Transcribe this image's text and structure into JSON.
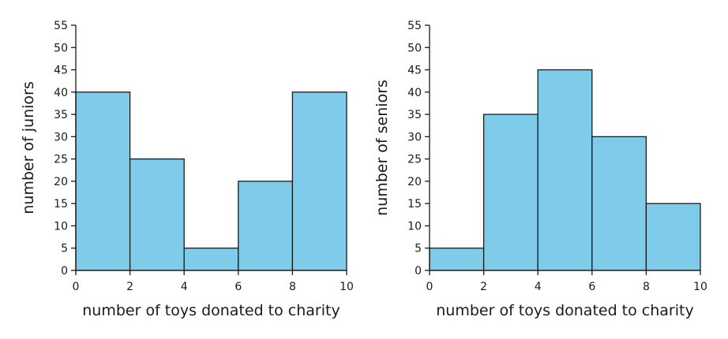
{
  "chart_data": [
    {
      "type": "bar",
      "title": "",
      "xlabel": "number of toys donated to charity",
      "ylabel": "number of juniors",
      "bins": [
        [
          0,
          2
        ],
        [
          2,
          4
        ],
        [
          4,
          6
        ],
        [
          6,
          8
        ],
        [
          8,
          10
        ]
      ],
      "values": [
        40,
        25,
        5,
        20,
        40
      ],
      "xlim": [
        0,
        10
      ],
      "ylim": [
        0,
        55
      ],
      "xticks": [
        "0",
        "2",
        "4",
        "6",
        "8",
        "10"
      ],
      "yticks": [
        "0",
        "5",
        "10",
        "15",
        "20",
        "25",
        "30",
        "35",
        "40",
        "45",
        "50",
        "55"
      ],
      "bar_color": "#7ecbea",
      "grid": false
    },
    {
      "type": "bar",
      "title": "",
      "xlabel": "number of toys donated to charity",
      "ylabel": "number of seniors",
      "bins": [
        [
          0,
          2
        ],
        [
          2,
          4
        ],
        [
          4,
          6
        ],
        [
          6,
          8
        ],
        [
          8,
          10
        ]
      ],
      "values": [
        5,
        35,
        45,
        30,
        15
      ],
      "xlim": [
        0,
        10
      ],
      "ylim": [
        0,
        55
      ],
      "xticks": [
        "0",
        "2",
        "4",
        "6",
        "8",
        "10"
      ],
      "yticks": [
        "0",
        "5",
        "10",
        "15",
        "20",
        "25",
        "30",
        "35",
        "40",
        "45",
        "50",
        "55"
      ],
      "bar_color": "#7ecbea",
      "grid": false
    }
  ]
}
